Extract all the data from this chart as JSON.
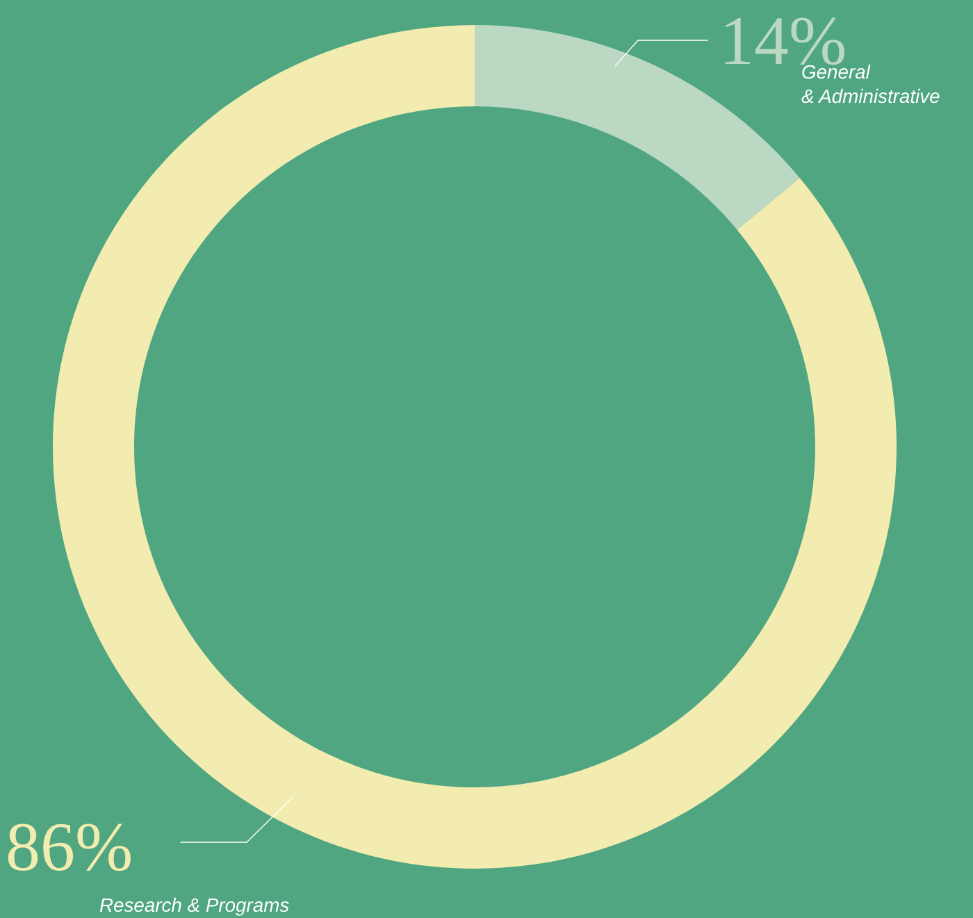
{
  "chart_data": {
    "type": "donut",
    "categories": [
      "General\n& Administrative",
      "Research & Programs"
    ],
    "values": [
      14,
      86
    ],
    "colors": [
      "#bbd8c2",
      "#f2ecb0"
    ],
    "value_labels": [
      "14%",
      "86%"
    ]
  }
}
